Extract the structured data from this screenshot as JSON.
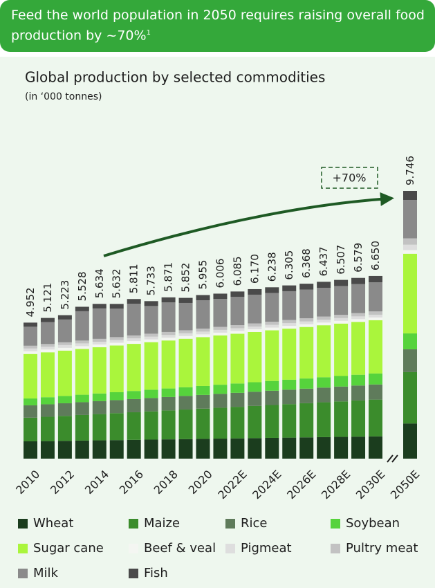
{
  "header": {
    "text": "Feed the world population in 2050 requires raising overall food production by ~70%",
    "footnote_mark": "1"
  },
  "chart_data": {
    "type": "stacked-bar",
    "title": "Global production by selected commodities",
    "subtitle": "(in ‘000 tonnes)",
    "annotation": "+70%",
    "categories": [
      "2010",
      null,
      "2012",
      null,
      "2014",
      null,
      "2016",
      null,
      "2018",
      null,
      "2020",
      null,
      "2022E",
      null,
      "2024E",
      null,
      "2026E",
      null,
      "2028E",
      null,
      "2030E",
      "2050E"
    ],
    "totals": {
      "values": [
        4.952,
        5.121,
        5.223,
        5.528,
        5.634,
        5.632,
        5.811,
        5.733,
        5.871,
        5.852,
        5.955,
        6.006,
        6.085,
        6.17,
        6.238,
        6.305,
        6.368,
        6.437,
        6.507,
        6.579,
        6.65,
        9.746
      ],
      "value_labels": [
        "4.952",
        "5.121",
        "5.223",
        "5.528",
        "5.634",
        "5.632",
        "5.811",
        "5.733",
        "5.871",
        "5.852",
        "5.955",
        "6.006",
        "6.085",
        "6.170",
        "6.238",
        "6.305",
        "6.368",
        "6.437",
        "6.507",
        "6.579",
        "6.650",
        "9.746"
      ]
    },
    "series": [
      {
        "name": "Wheat",
        "color": "#1b3d1e",
        "values": [
          0.63,
          0.639,
          0.648,
          0.657,
          0.666,
          0.675,
          0.684,
          0.693,
          0.702,
          0.711,
          0.72,
          0.729,
          0.738,
          0.747,
          0.756,
          0.765,
          0.774,
          0.783,
          0.792,
          0.801,
          0.81,
          1.28
        ]
      },
      {
        "name": "Maize",
        "color": "#3b8c2c",
        "values": [
          0.86,
          0.884,
          0.908,
          0.932,
          0.956,
          0.98,
          1.004,
          1.028,
          1.052,
          1.076,
          1.1,
          1.124,
          1.148,
          1.172,
          1.196,
          1.22,
          1.244,
          1.268,
          1.292,
          1.316,
          1.34,
          1.87
        ]
      },
      {
        "name": "Rice",
        "color": "#5f7b5b",
        "values": [
          0.45,
          0.455,
          0.46,
          0.465,
          0.47,
          0.475,
          0.48,
          0.485,
          0.49,
          0.495,
          0.5,
          0.505,
          0.51,
          0.515,
          0.52,
          0.525,
          0.53,
          0.535,
          0.54,
          0.545,
          0.55,
          0.83
        ]
      },
      {
        "name": "Soybean",
        "color": "#56d33c",
        "values": [
          0.25,
          0.258,
          0.265,
          0.273,
          0.28,
          0.288,
          0.295,
          0.303,
          0.31,
          0.318,
          0.325,
          0.333,
          0.34,
          0.348,
          0.355,
          0.363,
          0.37,
          0.378,
          0.385,
          0.393,
          0.4,
          0.58
        ]
      },
      {
        "name": "Sugar cane",
        "color": "#aaf53c",
        "values": [
          1.62,
          1.636,
          1.652,
          1.668,
          1.684,
          1.7,
          1.716,
          1.732,
          1.748,
          1.764,
          1.78,
          1.796,
          1.812,
          1.828,
          1.844,
          1.86,
          1.876,
          1.892,
          1.908,
          1.924,
          1.94,
          2.9
        ]
      },
      {
        "name": "Beef & veal",
        "color": "#f4f6f2",
        "values": [
          0.1,
          0.1,
          0.1,
          0.1,
          0.1,
          0.1,
          0.1,
          0.1,
          0.1,
          0.1,
          0.1,
          0.1,
          0.1,
          0.1,
          0.1,
          0.1,
          0.1,
          0.1,
          0.1,
          0.1,
          0.1,
          0.13
        ]
      },
      {
        "name": "Pigmeat",
        "color": "#dedede",
        "values": [
          0.1,
          0.1,
          0.1,
          0.1,
          0.1,
          0.1,
          0.1,
          0.1,
          0.1,
          0.1,
          0.1,
          0.1,
          0.1,
          0.1,
          0.1,
          0.1,
          0.1,
          0.1,
          0.1,
          0.1,
          0.1,
          0.2
        ]
      },
      {
        "name": "Pultry meat",
        "color": "#c2c2c2",
        "values": [
          0.1,
          0.101,
          0.102,
          0.103,
          0.104,
          0.105,
          0.106,
          0.107,
          0.108,
          0.109,
          0.11,
          0.111,
          0.112,
          0.113,
          0.114,
          0.115,
          0.116,
          0.117,
          0.118,
          0.119,
          0.12,
          0.23
        ]
      },
      {
        "name": "Milk",
        "color": "#8a8a8a",
        "values": [
          0.692,
          0.795,
          0.83,
          1.069,
          1.108,
          1.04,
          1.152,
          1.008,
          1.079,
          0.994,
          1.03,
          1.015,
          1.027,
          1.046,
          1.047,
          1.048,
          1.044,
          1.047,
          1.05,
          1.056,
          1.06,
          1.396
        ]
      },
      {
        "name": "Fish",
        "color": "#4a4a4a",
        "values": [
          0.15,
          0.154,
          0.158,
          0.162,
          0.166,
          0.17,
          0.174,
          0.178,
          0.182,
          0.186,
          0.19,
          0.194,
          0.198,
          0.202,
          0.206,
          0.21,
          0.214,
          0.218,
          0.222,
          0.226,
          0.23,
          0.33
        ]
      }
    ]
  }
}
